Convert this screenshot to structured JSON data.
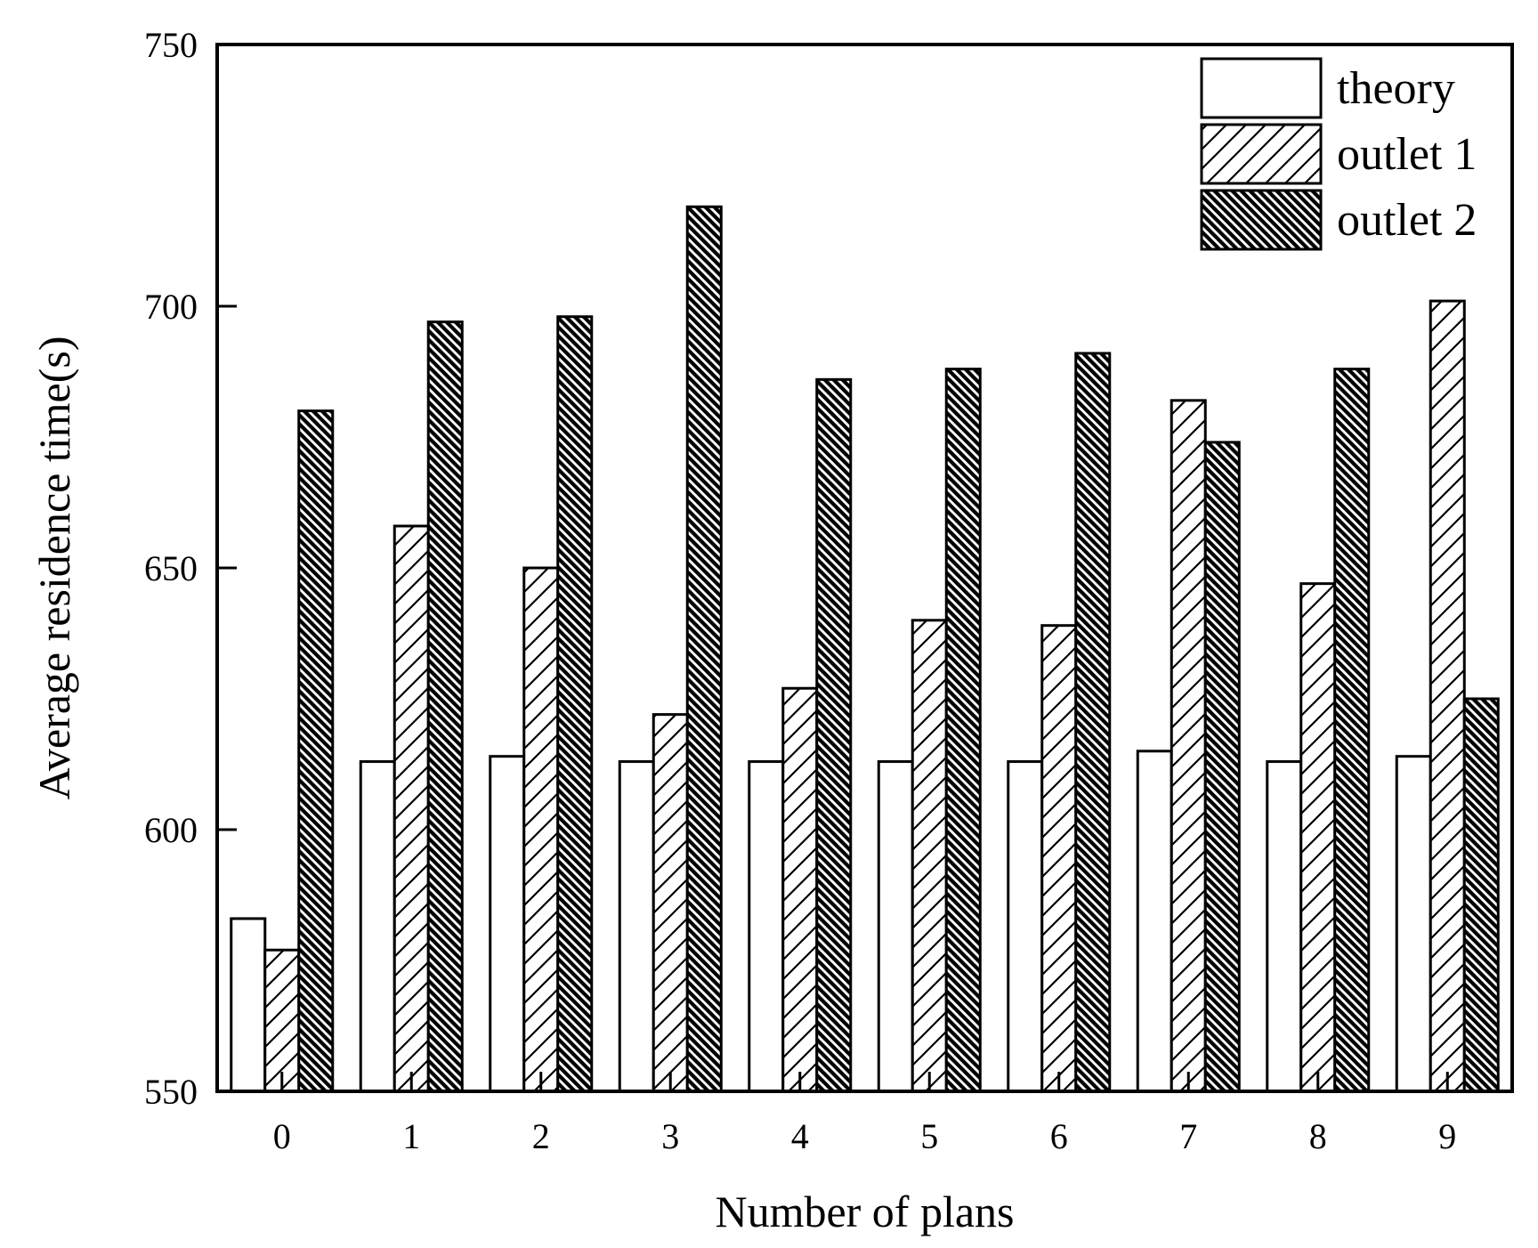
{
  "chart_data": {
    "type": "bar",
    "xlabel": "Number of plans",
    "ylabel": "Average residence time(s)",
    "ylim": [
      550,
      750
    ],
    "yticks": [
      "550",
      "600",
      "650",
      "700",
      "750"
    ],
    "categories": [
      "0",
      "1",
      "2",
      "3",
      "4",
      "5",
      "6",
      "7",
      "8",
      "9"
    ],
    "legend_position": "top-right",
    "grid": false,
    "series": [
      {
        "name": "theory",
        "pattern": "none",
        "values": [
          583,
          613,
          614,
          613,
          613,
          613,
          613,
          615,
          613,
          614
        ]
      },
      {
        "name": "outlet 1",
        "pattern": "hatch-sparse-diagonal",
        "values": [
          577,
          658,
          650,
          622,
          627,
          640,
          639,
          682,
          647,
          701
        ]
      },
      {
        "name": "outlet 2",
        "pattern": "hatch-dense-back-diagonal",
        "values": [
          680,
          697,
          698,
          719,
          686,
          688,
          691,
          674,
          688,
          625
        ]
      }
    ]
  }
}
